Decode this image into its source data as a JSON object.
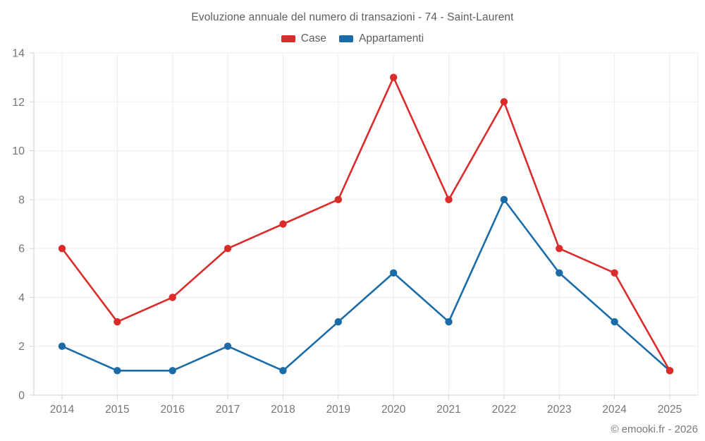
{
  "header": {
    "title": "Evoluzione annuale del numero di transazioni - 74 - Saint-Laurent"
  },
  "footer": {
    "credit": "© emooki.fr - 2026"
  },
  "colors": {
    "case_red": "#db2b2b",
    "appartamenti_blue": "#1a6ca8",
    "grid": "#ebebeb",
    "axis": "#d2d2d2",
    "tick_text": "#757575",
    "title_text": "#5b5f63"
  },
  "chart_data": {
    "type": "line",
    "title": "Evoluzione annuale del numero di transazioni - 74 - Saint-Laurent",
    "categories": [
      "2014",
      "2015",
      "2016",
      "2017",
      "2018",
      "2019",
      "2020",
      "2021",
      "2022",
      "2023",
      "2024",
      "2025"
    ],
    "series": [
      {
        "name": "Case",
        "color": "#db2b2b",
        "values": [
          6,
          3,
          4,
          6,
          7,
          8,
          13,
          8,
          12,
          6,
          5,
          1
        ]
      },
      {
        "name": "Appartamenti",
        "color": "#1a6ca8",
        "values": [
          2,
          1,
          1,
          2,
          1,
          3,
          5,
          3,
          8,
          5,
          3,
          1
        ]
      }
    ],
    "xlabel": "",
    "ylabel": "",
    "ylim": [
      0,
      14
    ],
    "ytick_step": 2,
    "yticks": [
      0,
      2,
      4,
      6,
      8,
      10,
      12,
      14
    ],
    "grid": true,
    "legend_position": "top",
    "annotation": "© emooki.fr - 2026"
  }
}
